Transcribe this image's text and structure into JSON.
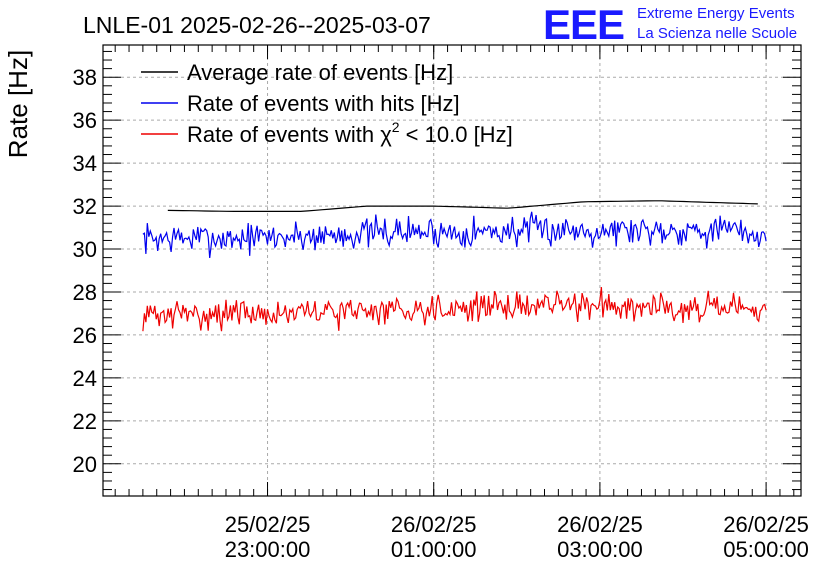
{
  "chart_data": {
    "type": "line",
    "title": "LNLE-01 2025-02-26--2025-03-07",
    "ylabel": "Rate [Hz]",
    "xlabel": "",
    "ylim": [
      18.5,
      39.5
    ],
    "yticks": [
      20,
      22,
      24,
      26,
      28,
      30,
      32,
      34,
      36,
      38
    ],
    "xlim_hours": [
      -2.98,
      5.42
    ],
    "xticks": [
      {
        "hours": -1.0,
        "date": "25/02/25",
        "time": "23:00:00"
      },
      {
        "hours": 1.0,
        "date": "26/02/25",
        "time": "01:00:00"
      },
      {
        "hours": 3.0,
        "date": "26/02/25",
        "time": "03:00:00"
      },
      {
        "hours": 5.0,
        "date": "26/02/25",
        "time": "05:00:00"
      }
    ],
    "x_unit": "hours since 2025-02-26 00:00:00",
    "grid": true,
    "legend_position": "top-left",
    "series": [
      {
        "name": "Average rate of events [Hz]",
        "color": "#000000",
        "x_start": -2.2,
        "x_end": 4.9,
        "noise": 0,
        "anchors": [
          [
            -2.2,
            31.8
          ],
          [
            -1.4,
            31.75
          ],
          [
            -0.6,
            31.75
          ],
          [
            0.2,
            32.0
          ],
          [
            1.0,
            32.0
          ],
          [
            1.9,
            31.9
          ],
          [
            2.8,
            32.2
          ],
          [
            3.7,
            32.25
          ],
          [
            4.9,
            32.1
          ]
        ]
      },
      {
        "name": "Rate of events with hits [Hz]",
        "color": "#0000ee",
        "x_start": -2.5,
        "x_end": 5.0,
        "noise": 0.55,
        "seed": 7,
        "anchors": [
          [
            -2.5,
            30.5
          ],
          [
            -1.5,
            30.5
          ],
          [
            -0.5,
            30.6
          ],
          [
            0.5,
            30.8
          ],
          [
            1.5,
            30.8
          ],
          [
            2.5,
            30.9
          ],
          [
            3.5,
            30.9
          ],
          [
            4.5,
            30.9
          ],
          [
            5.0,
            30.6
          ]
        ]
      },
      {
        "name": "Rate of events with χ² < 10.0 [Hz]",
        "color": "#ee0000",
        "x_start": -2.5,
        "x_end": 5.0,
        "noise": 0.5,
        "seed": 31,
        "anchors": [
          [
            -2.5,
            26.9
          ],
          [
            -1.5,
            27.0
          ],
          [
            -0.5,
            27.0
          ],
          [
            0.5,
            27.2
          ],
          [
            1.5,
            27.3
          ],
          [
            2.5,
            27.4
          ],
          [
            3.5,
            27.4
          ],
          [
            4.5,
            27.2
          ],
          [
            5.0,
            27.0
          ]
        ]
      }
    ]
  },
  "legend": {
    "avg": "Average rate of events [Hz]",
    "hits_label": "Rate of events with hits [Hz]",
    "chi_prefix": "Rate of events with χ",
    "chi_sup": "2",
    "chi_suffix": " < 10.0 [Hz]"
  },
  "logo": {
    "mark": "EEE",
    "line1": "Extreme Energy Events",
    "line2": "La Scienza nelle Scuole",
    "color": "#1a1aff"
  }
}
